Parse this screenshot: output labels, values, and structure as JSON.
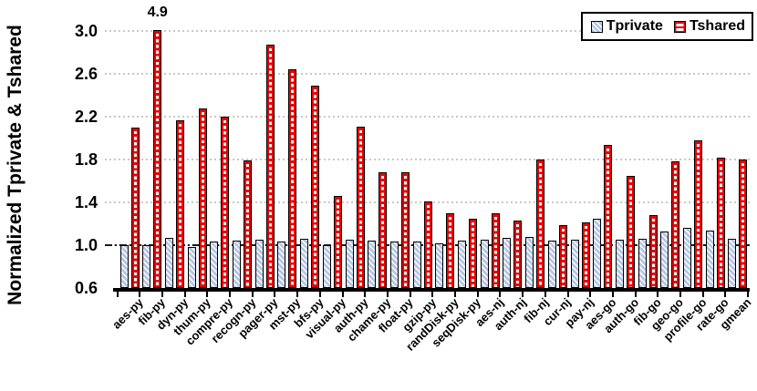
{
  "chart_data": {
    "type": "bar",
    "title": "",
    "ylabel": "Normalized Tprivate & Tshared",
    "xlabel": "",
    "ylim": [
      0.6,
      3.0
    ],
    "yticks": [
      0.6,
      1.0,
      1.4,
      1.8,
      2.2,
      2.6,
      3.0
    ],
    "reference_line": 1.0,
    "grid": "horizontal dotted gridlines at each y tick; black dash-dot reference line at y=1.0",
    "legend_position": "top-right inside plot, boxed",
    "categories": [
      "aes-py",
      "fib-py",
      "dyn-py",
      "thum-py",
      "compre-py",
      "recogn-py",
      "pager-py",
      "mst-py",
      "bfs-py",
      "visual-py",
      "auth-py",
      "chame-py",
      "float-py",
      "gzip-py",
      "randDisk-py",
      "seqDisk-py",
      "aes-nj",
      "auth-nj",
      "fib-nj",
      "cur-nj",
      "pay-nj",
      "aes-go",
      "auth-go",
      "fib-go",
      "geo-go",
      "profile-go",
      "rate-go",
      "gmean"
    ],
    "series": [
      {
        "name": "Tprivate",
        "pattern": "diagonal-stripes",
        "fill": "#b5c5e4",
        "border": "#000000",
        "values": [
          1.0,
          1.0,
          1.07,
          0.98,
          1.03,
          1.04,
          1.05,
          1.03,
          1.06,
          1.0,
          1.05,
          1.04,
          1.03,
          1.03,
          1.02,
          1.04,
          1.05,
          1.07,
          1.08,
          1.04,
          1.05,
          1.25,
          1.05,
          1.06,
          1.13,
          1.16,
          1.14,
          1.06
        ]
      },
      {
        "name": "Tshared",
        "pattern": "horizontal-ladder",
        "fill": "#e90000",
        "border": "#000000",
        "values": [
          2.1,
          4.9,
          2.17,
          2.28,
          2.2,
          1.79,
          2.87,
          2.64,
          2.49,
          1.46,
          2.11,
          1.68,
          1.68,
          1.41,
          1.3,
          1.25,
          1.3,
          1.23,
          1.8,
          1.19,
          1.21,
          1.94,
          1.65,
          1.28,
          1.78,
          1.98,
          1.82,
          1.8
        ]
      }
    ],
    "annotations": [
      {
        "text": "4.9",
        "category": "fib-py",
        "series": "Tshared",
        "note": "bar clipped at axis max 3.0"
      }
    ],
    "colors": {
      "tprivate_fill": "#b5c5e4",
      "tshared_red": "#e90000",
      "bar_border": "#000000",
      "gridline": "#c8c8c8",
      "reference_line": "#000000",
      "background": "#ffffff"
    }
  }
}
